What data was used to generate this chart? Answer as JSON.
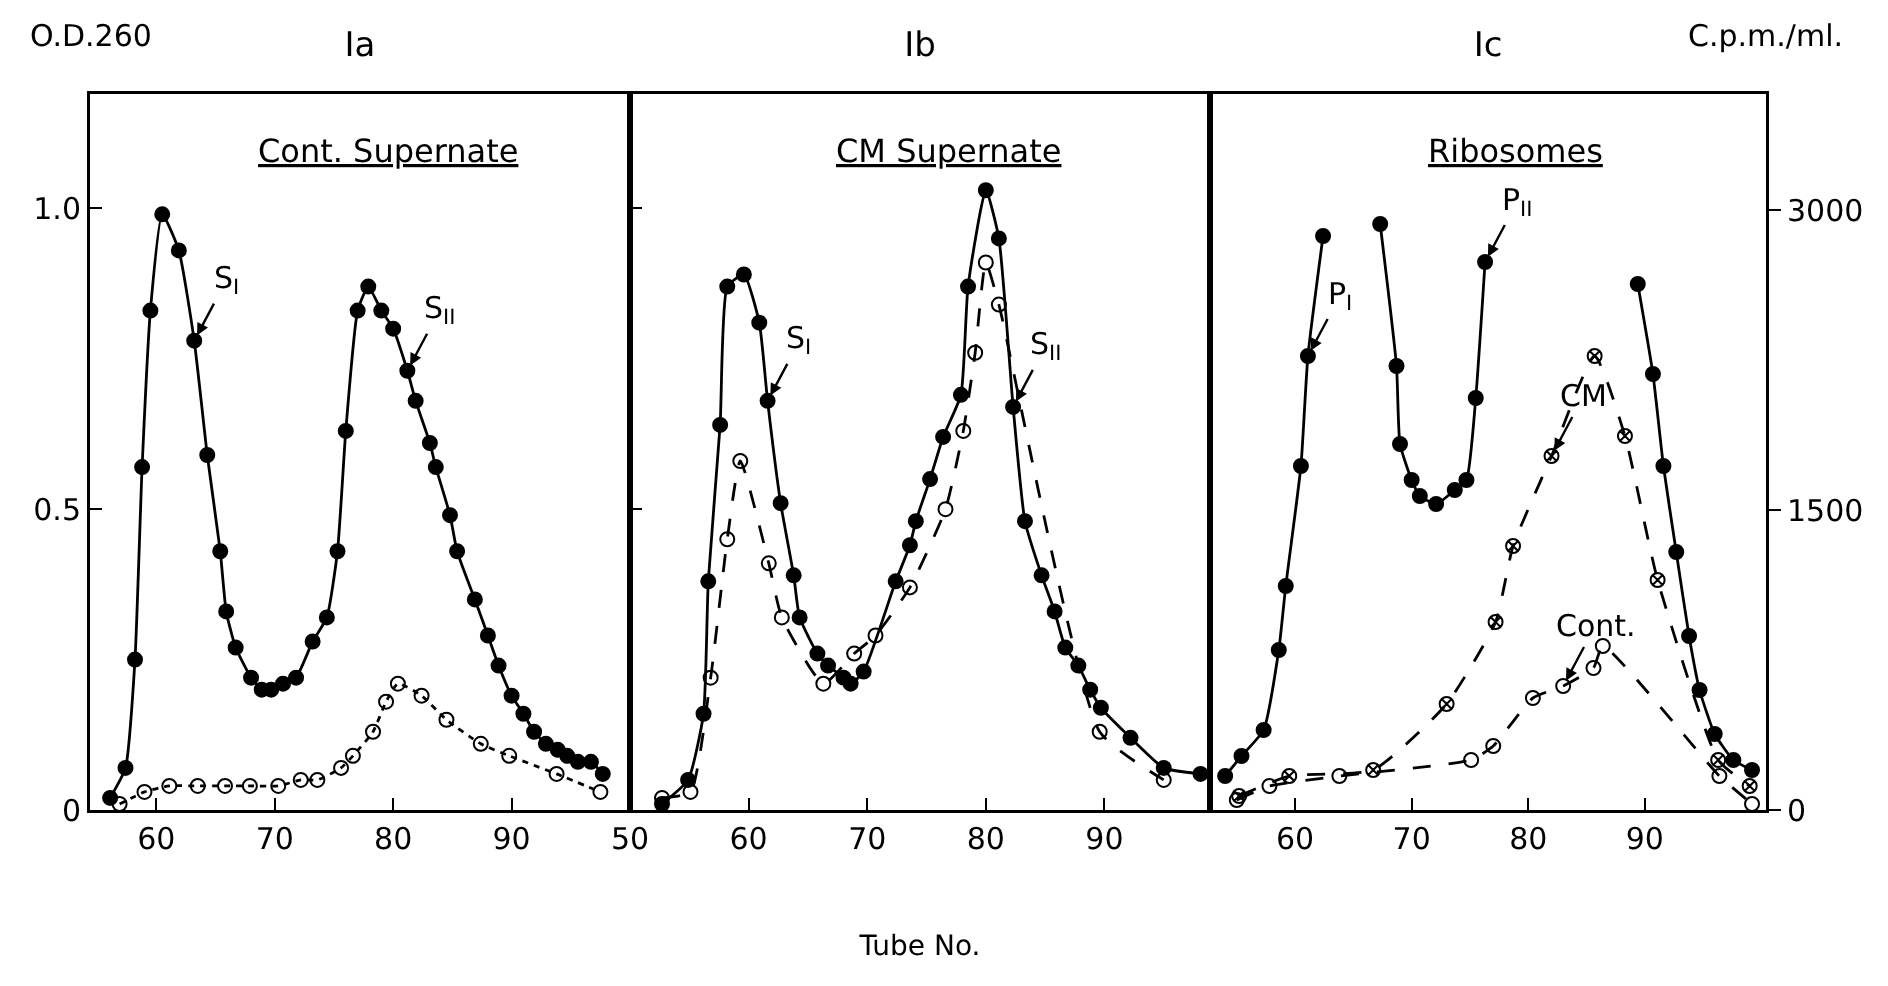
{
  "chart_data": [
    {
      "type": "line",
      "title": "Ia",
      "subtitle": "Cont. Supernate",
      "ylabel": "O.D.260",
      "xlim": [
        54.4,
        100
      ],
      "xticks": [
        60,
        70,
        80,
        90
      ],
      "ylim": [
        0,
        1.19
      ],
      "yticks": [
        0,
        0.5,
        {
          "value": 1,
          "label": "1.0"
        }
      ],
      "grid": false,
      "marker": "circle",
      "series": [
        {
          "color": "#000000",
          "line_style": "solid",
          "x": [
            56.1,
            57.4,
            58.2,
            58.8,
            59.5,
            60.5,
            61.9,
            63.2,
            64.3,
            65.4,
            65.9,
            66.7,
            68.0,
            68.9,
            69.7,
            70.7,
            71.8,
            73.2,
            74.4,
            75.3,
            76.0,
            77.0,
            77.9,
            79.0,
            80.0,
            81.2,
            81.9,
            83.1,
            83.6,
            84.8,
            85.4,
            86.9,
            88.0,
            88.9,
            90.0,
            91.0,
            91.9,
            92.9,
            93.9,
            94.7,
            95.6,
            96.7,
            97.7
          ],
          "values": [
            0.02,
            0.07,
            0.25,
            0.57,
            0.83,
            0.99,
            0.93,
            0.78,
            0.59,
            0.43,
            0.33,
            0.27,
            0.22,
            0.2,
            0.2,
            0.21,
            0.22,
            0.28,
            0.32,
            0.43,
            0.63,
            0.83,
            0.87,
            0.83,
            0.8,
            0.73,
            0.68,
            0.61,
            0.57,
            0.49,
            0.43,
            0.35,
            0.29,
            0.24,
            0.19,
            0.16,
            0.13,
            0.11,
            0.1,
            0.09,
            0.08,
            0.08,
            0.06
          ]
        },
        {
          "color": "#000000",
          "line_style": "dotted",
          "x": [
            56.9,
            59,
            61.1,
            63.5,
            65.8,
            67.9,
            70.3,
            72.2,
            73.6,
            75.6,
            76.6,
            78.3,
            79.4,
            80.4,
            82.4,
            84.5,
            87.4,
            89.8,
            93.8,
            97.5
          ],
          "values": [
            0.01,
            0.03,
            0.04,
            0.04,
            0.04,
            0.04,
            0.04,
            0.05,
            0.05,
            0.07,
            0.09,
            0.13,
            0.18,
            0.21,
            0.19,
            0.15,
            0.11,
            0.09,
            0.06,
            0.03
          ]
        }
      ],
      "annotations": [
        {
          "text": "S$_{I}$",
          "x": 63.2,
          "y": 0.78
        },
        {
          "text": "S$_{II}$",
          "x": 81.2,
          "y": 0.73
        }
      ]
    },
    {
      "type": "line",
      "title": "Ib",
      "subtitle": "CM Supernate",
      "xlabel": "Tube No.",
      "xlim": [
        50,
        98.9
      ],
      "xticks": [
        50,
        60,
        70,
        80,
        90
      ],
      "ylim": [
        0,
        1.19
      ],
      "yticks": [
        0,
        0.5,
        1
      ],
      "tick_labels": "x",
      "grid": false,
      "marker": "circle",
      "series": [
        {
          "color": "#000000",
          "line_style": "solid",
          "x": [
            52.7,
            54.9,
            56.2,
            56.6,
            57.6,
            58.2,
            59.6,
            60.9,
            61.6,
            62.7,
            63.8,
            64.3,
            65.8,
            66.7,
            68.0,
            68.6,
            69.7,
            72.4,
            73.6,
            74.1,
            75.3,
            76.4,
            77.9,
            78.5,
            80.0,
            81.1,
            82.3,
            83.3,
            84.7,
            85.8,
            86.7,
            87.8,
            88.8,
            89.7,
            92.2,
            95.0,
            98.1
          ],
          "values": [
            0.01,
            0.05,
            0.16,
            0.38,
            0.64,
            0.87,
            0.89,
            0.81,
            0.68,
            0.51,
            0.39,
            0.32,
            0.26,
            0.24,
            0.22,
            0.21,
            0.23,
            0.38,
            0.44,
            0.48,
            0.55,
            0.62,
            0.69,
            0.87,
            1.03,
            0.95,
            0.67,
            0.48,
            0.39,
            0.33,
            0.27,
            0.24,
            0.2,
            0.17,
            0.12,
            0.07,
            0.06
          ]
        },
        {
          "color": "#000000",
          "line_style": "dashed",
          "x": [
            52.7,
            55.1,
            56.8,
            58.2,
            59.3,
            61.7,
            62.8,
            66.3,
            68.9,
            70.7,
            73.6,
            76.6,
            78.1,
            79.1,
            80.0,
            81.1,
            89.6,
            95.0
          ],
          "values": [
            0.02,
            0.03,
            0.22,
            0.45,
            0.58,
            0.41,
            0.32,
            0.21,
            0.26,
            0.29,
            0.37,
            0.5,
            0.63,
            0.76,
            0.91,
            0.84,
            0.13,
            0.05
          ]
        }
      ],
      "annotations": [
        {
          "text": "S$_{I}$",
          "x": 61.6,
          "y": 0.68
        },
        {
          "text": "S$_{II}$",
          "x": 82.3,
          "y": 0.67
        }
      ]
    },
    {
      "type": "line",
      "title": "Ic",
      "subtitle": "Ribosomes",
      "ylabel": "C.p.m./ml.",
      "xlim": [
        52.7,
        100.4
      ],
      "xticks": [
        60,
        70,
        80,
        90
      ],
      "ylim": [
        0,
        3580
      ],
      "yticks": [
        0,
        1500,
        3000
      ],
      "grid": false,
      "marker": "circle",
      "series": [
        {
          "color": "#000000",
          "line_style": "solid",
          "x": [
            54,
            55.4,
            57.3,
            58.6,
            59.2,
            60.5,
            61.1,
            62.4,
            65,
            67.3,
            68.7,
            69,
            70,
            70.7,
            72.1,
            73.7,
            74.7,
            75.5,
            76.3,
            83,
            89.4,
            90.7,
            91.6,
            92.7,
            93.8,
            94.7,
            96,
            97.6,
            99.2
          ],
          "values": [
            170,
            270,
            400,
            800,
            1120,
            1720,
            2270,
            2870,
            null,
            2930,
            2220,
            1830,
            1650,
            1570,
            1530,
            1600,
            1650,
            2060,
            2740,
            null,
            2630,
            2180,
            1720,
            1290,
            870,
            600,
            380,
            250,
            200
          ]
        },
        {
          "color": "#000000",
          "line_style": "dashed",
          "marker": "cross",
          "x": [
            55.2,
            59.5,
            66.7,
            73,
            77.2,
            78.7,
            82,
            85.7,
            88.3,
            91.1,
            96.3,
            99
          ],
          "values": [
            70,
            170,
            200,
            530,
            940,
            1320,
            1770,
            2270,
            1870,
            1150,
            250,
            120
          ]
        },
        {
          "color": "#000000",
          "line_style": "dashed",
          "x": [
            55,
            57.8,
            63.8,
            75.1,
            77,
            80.4,
            83,
            85.6,
            86.4,
            96.4,
            99.2
          ],
          "values": [
            50,
            120,
            170,
            250,
            320,
            560,
            620,
            710,
            820,
            170,
            30
          ]
        }
      ],
      "annotations": [
        {
          "text": "P$_{I}$",
          "x": 61.1,
          "y": 2270
        },
        {
          "text": "P$_{II}$",
          "x": 76.3,
          "y": 2740
        },
        {
          "text": "CM",
          "x": 82,
          "y": 1770
        },
        {
          "text": "Cont.",
          "x": 83,
          "y": 620
        }
      ]
    }
  ]
}
